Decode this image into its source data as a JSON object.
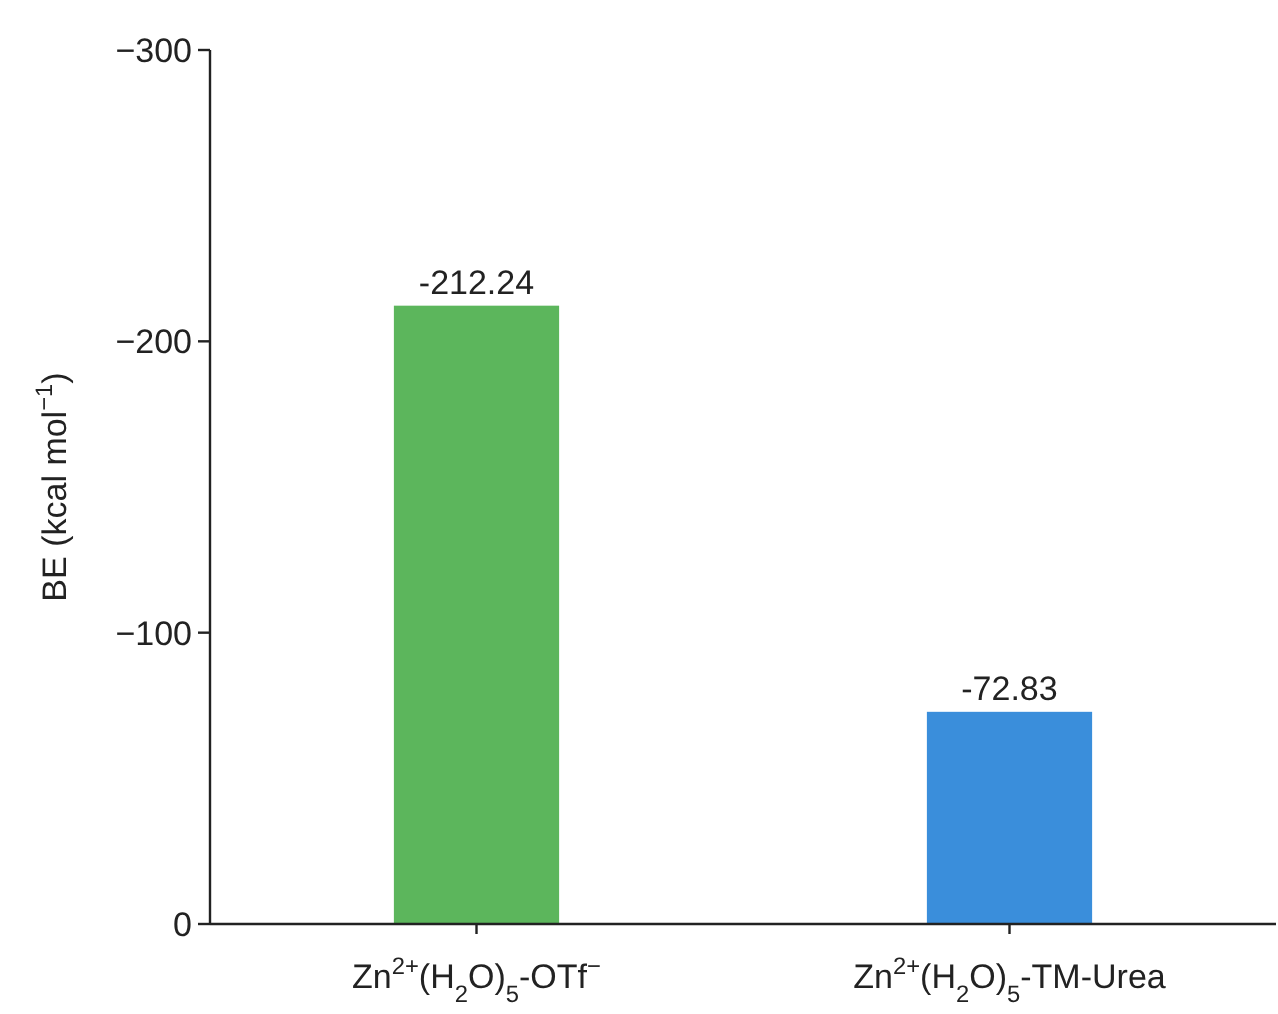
{
  "chart_data": {
    "type": "bar",
    "ylabel": "BE (kcal mol$^{−1}$)",
    "categories": [
      "Zn$^{2+}$(H$_{2}$O)$_{5}$-OTf$^{−}$",
      "Zn$^{2+}$(H$_{2}$O)$_{5}$-TM-Urea"
    ],
    "values": [
      -212.24,
      -72.83
    ],
    "colors": [
      "#5cb65c",
      "#3a8edb"
    ],
    "ylim": [
      0,
      -300
    ],
    "yticks": [
      {
        "value": -300,
        "label": "−300"
      },
      {
        "value": -200,
        "label": "−200"
      },
      {
        "value": -100,
        "label": "−100"
      },
      0
    ],
    "data_labels": true,
    "grid": false
  }
}
